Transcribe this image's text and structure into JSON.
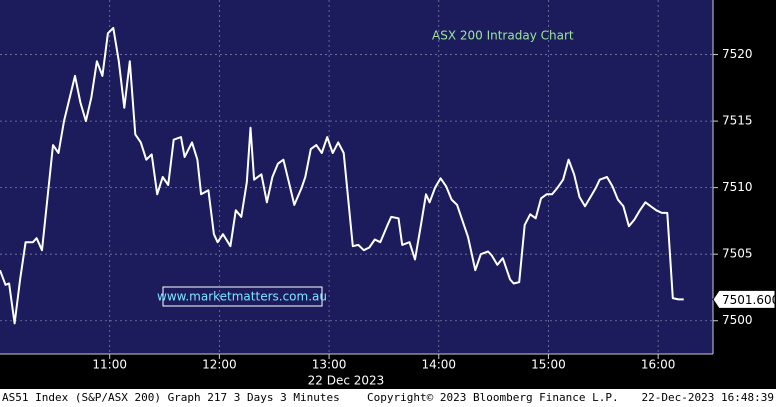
{
  "chart_data": {
    "type": "line",
    "title": "ASX 200 Intraday Chart",
    "watermark": "www.marketmatters.com.au",
    "date_label": "22 Dec 2023",
    "footer_left": "AS51 Index (S&P/ASX 200) Graph 217 3 Days 3 Minutes",
    "footer_center": "Copyright© 2023 Bloomberg Finance L.P.",
    "footer_right": "22-Dec-2023 16:48:39",
    "last_label": {
      "value": 7501.6,
      "label": "7501.600"
    },
    "color": "#ffffff",
    "grid": true,
    "x": [
      "10:00",
      "10:03",
      "10:05",
      "10:08",
      "10:11",
      "10:14",
      "10:18",
      "10:20",
      "10:23",
      "10:29",
      "10:32",
      "10:35",
      "10:41",
      "10:44",
      "10:47",
      "10:50",
      "10:53",
      "10:56",
      "10:59",
      "11:02",
      "11:05",
      "11:08",
      "11:11",
      "11:14",
      "11:17",
      "11:20",
      "11:23",
      "11:26",
      "11:29",
      "11:32",
      "11:35",
      "11:39",
      "11:41",
      "11:45",
      "11:48",
      "11:50",
      "11:54",
      "11:57",
      "11:59",
      "12:02",
      "12:06",
      "12:09",
      "12:12",
      "12:15",
      "12:17",
      "12:19",
      "12:23",
      "12:26",
      "12:29",
      "12:32",
      "12:35",
      "12:38",
      "12:41",
      "12:45",
      "12:47",
      "12:50",
      "12:53",
      "12:56",
      "12:59",
      "13:02",
      "13:05",
      "13:08",
      "13:13",
      "13:16",
      "13:19",
      "13:22",
      "13:25",
      "13:28",
      "13:32",
      "13:34",
      "13:38",
      "13:40",
      "13:44",
      "13:47",
      "13:50",
      "13:53",
      "13:55",
      "13:58",
      "14:01",
      "14:04",
      "14:07",
      "14:10",
      "14:16",
      "14:20",
      "14:23",
      "14:27",
      "14:29",
      "14:32",
      "14:35",
      "14:39",
      "14:41",
      "14:44",
      "14:47",
      "14:50",
      "14:53",
      "14:56",
      "14:59",
      "15:02",
      "15:05",
      "15:08",
      "15:11",
      "15:14",
      "15:17",
      "15:20",
      "15:23",
      "15:26",
      "15:28",
      "15:32",
      "15:35",
      "15:38",
      "15:41",
      "15:44",
      "15:47",
      "15:50",
      "15:53",
      "15:56",
      "15:59",
      "16:02",
      "16:05",
      "16:08",
      "16:11",
      "16:14"
    ],
    "values": [
      7503.8,
      7502.7,
      7502.8,
      7499.8,
      7503.1,
      7505.9,
      7505.9,
      7506.2,
      7505.3,
      7513.2,
      7512.6,
      7515.0,
      7518.4,
      7516.4,
      7515.0,
      7516.8,
      7519.5,
      7518.4,
      7521.6,
      7522.0,
      7519.5,
      7516.0,
      7519.5,
      7514.0,
      7513.4,
      7512.1,
      7512.5,
      7509.5,
      7510.8,
      7510.2,
      7513.6,
      7513.8,
      7512.3,
      7513.4,
      7512.1,
      7509.5,
      7509.8,
      7506.5,
      7505.9,
      7506.5,
      7505.6,
      7508.3,
      7507.8,
      7510.4,
      7514.5,
      7510.6,
      7511.0,
      7508.9,
      7510.8,
      7511.8,
      7512.1,
      7510.4,
      7508.7,
      7510.0,
      7510.8,
      7512.9,
      7513.2,
      7512.6,
      7513.8,
      7512.6,
      7513.4,
      7512.6,
      7505.6,
      7505.7,
      7505.3,
      7505.5,
      7506.1,
      7505.9,
      7507.2,
      7507.8,
      7507.7,
      7505.7,
      7505.9,
      7504.6,
      7507.0,
      7509.5,
      7508.9,
      7510.0,
      7510.7,
      7510.1,
      7509.1,
      7508.7,
      7506.3,
      7503.8,
      7505.0,
      7505.2,
      7504.9,
      7504.2,
      7504.7,
      7503.1,
      7502.8,
      7502.9,
      7507.2,
      7508.0,
      7507.7,
      7509.2,
      7509.5,
      7509.5,
      7510.0,
      7510.6,
      7512.1,
      7511.0,
      7509.3,
      7508.6,
      7509.3,
      7510.0,
      7510.6,
      7510.8,
      7510.1,
      7509.1,
      7508.6,
      7507.1,
      7507.6,
      7508.3,
      7508.9,
      7508.6,
      7508.3,
      7508.1,
      7508.1,
      7501.7,
      7501.6,
      7501.6
    ],
    "xlim": [
      "10:00",
      "16:30"
    ],
    "xticks": [
      "11:00",
      "12:00",
      "13:00",
      "14:00",
      "15:00",
      "16:00"
    ],
    "ylim": [
      7497.5,
      7524.1
    ],
    "yticks": [
      7500,
      7505,
      7510,
      7515,
      7520
    ]
  }
}
